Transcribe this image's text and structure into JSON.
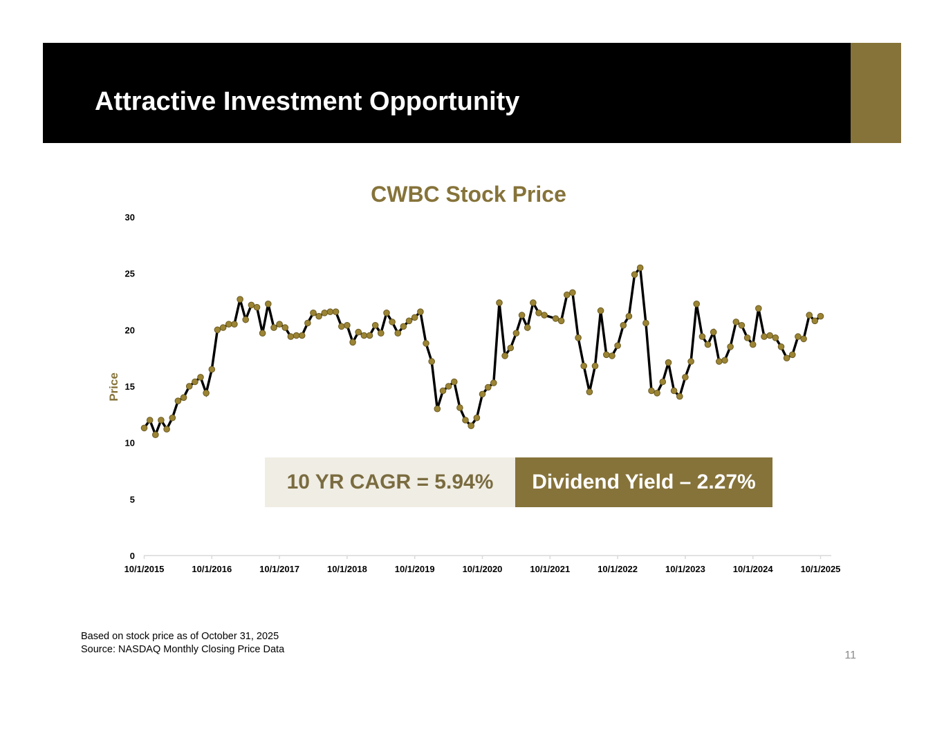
{
  "slide": {
    "title": "Attractive Investment Opportunity",
    "page_number": "11",
    "footnote_1": "Based on stock price as of October 31, 2025",
    "footnote_2": "Source: NASDAQ Monthly Closing Price Data"
  },
  "colors": {
    "header_bg": "#000000",
    "accent_gold": "#86733a",
    "line": "#000000",
    "marker": "#9b8434",
    "cagr_bg": "#f0ede4",
    "cagr_text": "#7a6c40"
  },
  "callouts": {
    "cagr": "10 YR CAGR = 5.94%",
    "dividend_yield": "Dividend Yield – 2.27%"
  },
  "chart_data": {
    "type": "line",
    "title": "CWBC Stock Price",
    "xlabel": "",
    "ylabel": "Price",
    "ylim": [
      0,
      30
    ],
    "yticks": [
      0,
      5,
      10,
      15,
      20,
      25,
      30
    ],
    "xlim": [
      0,
      121
    ],
    "xtick_positions": [
      0,
      12,
      24,
      36,
      48,
      60,
      72,
      84,
      96,
      108,
      120
    ],
    "xtick_labels": [
      "10/1/2015",
      "10/1/2016",
      "10/1/2017",
      "10/1/2018",
      "10/1/2019",
      "10/1/2020",
      "10/1/2021",
      "10/1/2022",
      "10/1/2023",
      "10/1/2024",
      "10/1/2025"
    ],
    "series": [
      {
        "name": "Price",
        "x": [
          0,
          1,
          2,
          3,
          4,
          5,
          6,
          7,
          8,
          9,
          10,
          11,
          12,
          13,
          14,
          15,
          16,
          17,
          18,
          19,
          20,
          21,
          22,
          23,
          24,
          25,
          26,
          27,
          28,
          29,
          30,
          31,
          32,
          33,
          34,
          35,
          36,
          37,
          38,
          39,
          40,
          41,
          42,
          43,
          44,
          45,
          46,
          47,
          48,
          49,
          50,
          51,
          52,
          53,
          54,
          55,
          56,
          57,
          58,
          59,
          60,
          61,
          62,
          63,
          64,
          65,
          66,
          67,
          68,
          69,
          70,
          71,
          73,
          74,
          75,
          76,
          77,
          78,
          79,
          80,
          81,
          82,
          83,
          84,
          85,
          86,
          87,
          88,
          89,
          90,
          91,
          92,
          93,
          94,
          95,
          96,
          97,
          98,
          99,
          100,
          101,
          102,
          103,
          104,
          105,
          106,
          107,
          108,
          109,
          110,
          111,
          112,
          113,
          114,
          115,
          116,
          117,
          118,
          119,
          120
        ],
        "values": [
          11.3,
          12.0,
          10.7,
          12.0,
          11.2,
          12.2,
          13.7,
          14.0,
          15.0,
          15.4,
          15.8,
          14.4,
          16.5,
          20.0,
          20.2,
          20.5,
          20.5,
          22.7,
          20.9,
          22.2,
          22.0,
          19.7,
          22.3,
          20.2,
          20.5,
          20.2,
          19.4,
          19.5,
          19.5,
          20.6,
          21.5,
          21.2,
          21.5,
          21.6,
          21.6,
          20.3,
          20.4,
          18.9,
          19.8,
          19.5,
          19.5,
          20.4,
          19.7,
          21.5,
          20.7,
          19.7,
          20.3,
          20.8,
          21.1,
          21.6,
          18.8,
          17.2,
          13.0,
          14.6,
          15.0,
          15.4,
          13.1,
          12.0,
          11.5,
          12.2,
          14.3,
          14.9,
          15.3,
          22.4,
          17.7,
          18.4,
          19.7,
          21.3,
          20.2,
          22.4,
          21.5,
          21.3,
          21.0,
          20.8,
          23.1,
          23.3,
          19.3,
          16.8,
          14.5,
          16.8,
          21.7,
          17.8,
          17.7,
          18.6,
          20.4,
          21.2,
          24.9,
          25.5,
          20.6,
          14.6,
          14.4,
          15.4,
          17.1,
          14.6,
          14.1,
          15.8,
          17.2,
          22.3,
          19.4,
          18.7,
          19.8,
          17.2,
          17.3,
          18.5,
          20.7,
          20.4,
          19.3,
          18.7,
          21.9,
          19.4,
          19.5,
          19.3,
          18.5,
          17.5,
          17.8,
          19.4,
          19.2,
          21.3,
          20.8,
          21.2
        ]
      }
    ],
    "grid": false
  }
}
